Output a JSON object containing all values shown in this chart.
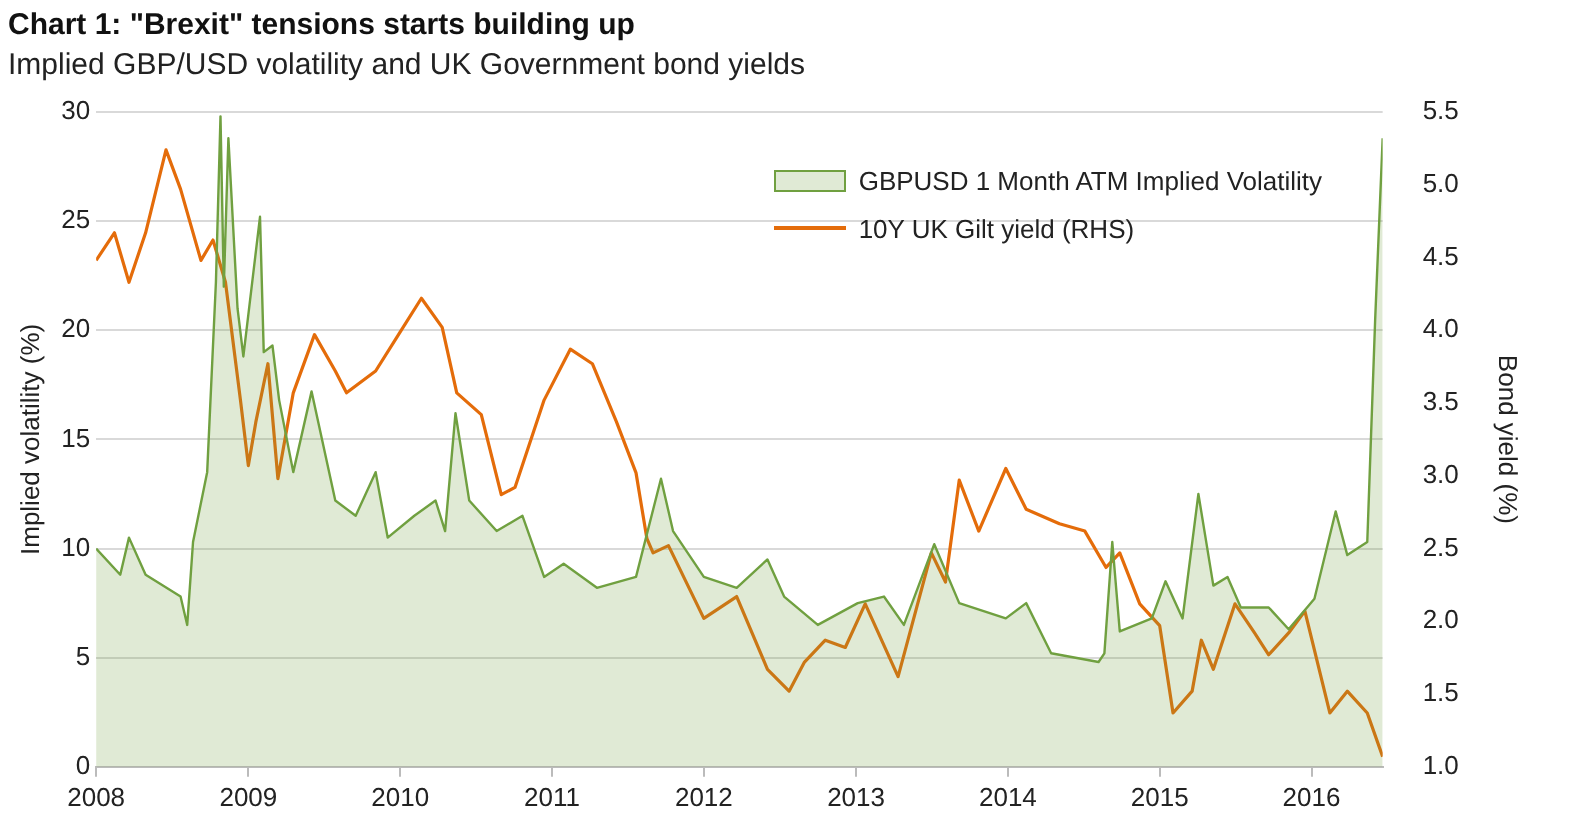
{
  "chart_data": {
    "type": "line",
    "title": "Chart 1: \"Brexit\" tensions starts building up",
    "subtitle": "Implied GBP/USD volatility and UK Government bond yields",
    "ylabel": "Implied volatility (%)",
    "y2label": "Bond yield (%)",
    "xlim": [
      "2008-01-01",
      "2016-06-20"
    ],
    "xticks": [
      "2008",
      "2009",
      "2010",
      "2011",
      "2012",
      "2013",
      "2014",
      "2015",
      "2016"
    ],
    "ylim": [
      0,
      30
    ],
    "yticks": [
      0,
      5,
      10,
      15,
      20,
      25,
      30
    ],
    "y2lim": [
      1.0,
      5.5
    ],
    "y2ticks": [
      {
        "value": 1,
        "label": "1.0"
      },
      {
        "value": 1.5,
        "label": "1.5"
      },
      {
        "value": 2,
        "label": "2.0"
      },
      {
        "value": 2.5,
        "label": "2.5"
      },
      {
        "value": 3,
        "label": "3.0"
      },
      {
        "value": 3.5,
        "label": "3.5"
      },
      {
        "value": 4,
        "label": "4.0"
      },
      {
        "value": 4.5,
        "label": "4.5"
      },
      {
        "value": 5,
        "label": "5.0"
      },
      {
        "value": 5.5,
        "label": "5.5"
      }
    ],
    "grid": "y",
    "legend": "top right",
    "marker": "none",
    "series": [
      {
        "name": "GBPUSD 1 Month ATM Implied Volatility",
        "type": "area",
        "color": "#70a040",
        "x": [
          "2008-01-01",
          "2008-02-28",
          "2008-03-20",
          "2008-04-29",
          "2008-07-22",
          "2008-08-07",
          "2008-08-21",
          "2008-09-24",
          "2008-10-15",
          "2008-10-26",
          "2008-11-03",
          "2008-11-14",
          "2008-12-06",
          "2008-12-20",
          "2009-01-29",
          "2009-02-07",
          "2009-02-28",
          "2009-03-16",
          "2009-04-19",
          "2009-06-02",
          "2009-07-29",
          "2009-09-16",
          "2009-11-03",
          "2009-12-02",
          "2010-02-04",
          "2010-03-27",
          "2010-04-19",
          "2010-05-14",
          "2010-06-16",
          "2010-08-21",
          "2010-10-22",
          "2010-12-13",
          "2011-01-29",
          "2011-04-19",
          "2011-07-22",
          "2011-09-20",
          "2011-10-19",
          "2012-01-01",
          "2012-03-20",
          "2012-06-02",
          "2012-07-12",
          "2012-10-01",
          "2013-01-05",
          "2013-03-09",
          "2013-04-26",
          "2013-07-08",
          "2013-09-06",
          "2013-12-27",
          "2014-02-14",
          "2014-04-15",
          "2014-08-07",
          "2014-08-21",
          "2014-09-09",
          "2014-09-27",
          "2014-12-13",
          "2015-01-15",
          "2015-02-25",
          "2015-04-04",
          "2015-05-10",
          "2015-06-13",
          "2015-07-15",
          "2015-09-20",
          "2015-11-07",
          "2016-01-08",
          "2016-02-28",
          "2016-03-27",
          "2016-05-14",
          "2016-06-02",
          "2016-06-20"
        ],
        "values": [
          10.0,
          8.8,
          10.5,
          8.8,
          7.8,
          6.5,
          10.3,
          13.5,
          22.2,
          29.8,
          22,
          28.8,
          21,
          18.8,
          25.2,
          19,
          19.3,
          16.8,
          13.5,
          17.2,
          12.2,
          11.5,
          13.5,
          10.5,
          11.5,
          12.2,
          10.8,
          16.2,
          12.2,
          10.8,
          11.5,
          8.7,
          9.3,
          8.2,
          8.7,
          13.2,
          10.8,
          8.7,
          8.2,
          9.5,
          7.8,
          6.5,
          7.5,
          7.8,
          6.5,
          10.2,
          7.5,
          6.8,
          7.5,
          5.2,
          4.8,
          5.2,
          10.3,
          6.2,
          6.8,
          8.5,
          6.8,
          12.5,
          8.3,
          8.7,
          7.3,
          7.3,
          6.3,
          7.7,
          11.7,
          9.7,
          10.3,
          20.5,
          28.8
        ]
      },
      {
        "name": "10Y UK Gilt yield (RHS)",
        "type": "line",
        "axis": "y2",
        "color": "#e46c0a",
        "x": [
          "2008-01-01",
          "2008-02-14",
          "2008-03-20",
          "2008-04-29",
          "2008-06-17",
          "2008-07-22",
          "2008-09-09",
          "2008-10-08",
          "2008-11-07",
          "2008-12-13",
          "2009-01-01",
          "2009-01-19",
          "2009-02-17",
          "2009-03-13",
          "2009-04-19",
          "2009-06-09",
          "2009-07-29",
          "2009-08-25",
          "2009-11-03",
          "2009-12-28",
          "2010-02-21",
          "2010-04-12",
          "2010-05-17",
          "2010-07-15",
          "2010-09-01",
          "2010-10-04",
          "2010-12-13",
          "2011-02-14",
          "2011-04-08",
          "2011-06-05",
          "2011-07-22",
          "2011-08-17",
          "2011-09-01",
          "2011-10-08",
          "2012-01-01",
          "2012-03-20",
          "2012-06-02",
          "2012-07-24",
          "2012-08-30",
          "2012-10-19",
          "2012-12-06",
          "2013-01-23",
          "2013-04-12",
          "2013-07-01",
          "2013-08-04",
          "2013-09-06",
          "2013-10-23",
          "2013-12-27",
          "2014-02-14",
          "2014-05-05",
          "2014-07-05",
          "2014-08-25",
          "2014-09-27",
          "2014-11-14",
          "2015-01-01",
          "2015-02-02",
          "2015-03-20",
          "2015-04-11",
          "2015-05-10",
          "2015-07-01",
          "2015-08-17",
          "2015-09-20",
          "2015-11-07",
          "2015-12-16",
          "2016-02-14",
          "2016-03-27",
          "2016-05-14",
          "2016-06-20"
        ],
        "values": [
          4.48,
          4.67,
          4.33,
          4.67,
          5.24,
          4.97,
          4.48,
          4.62,
          4.33,
          3.52,
          3.07,
          3.37,
          3.77,
          2.98,
          3.57,
          3.97,
          3.72,
          3.57,
          3.72,
          3.97,
          4.22,
          4.02,
          3.57,
          3.42,
          2.87,
          2.92,
          3.52,
          3.87,
          3.77,
          3.37,
          3.02,
          2.57,
          2.47,
          2.52,
          2.02,
          2.17,
          1.67,
          1.52,
          1.72,
          1.87,
          1.82,
          2.12,
          1.62,
          2.47,
          2.27,
          2.97,
          2.62,
          3.05,
          2.77,
          2.67,
          2.62,
          2.37,
          2.47,
          2.12,
          1.97,
          1.37,
          1.52,
          1.87,
          1.67,
          2.12,
          1.92,
          1.77,
          1.92,
          2.07,
          1.37,
          1.52,
          1.37,
          1.07
        ]
      }
    ]
  }
}
